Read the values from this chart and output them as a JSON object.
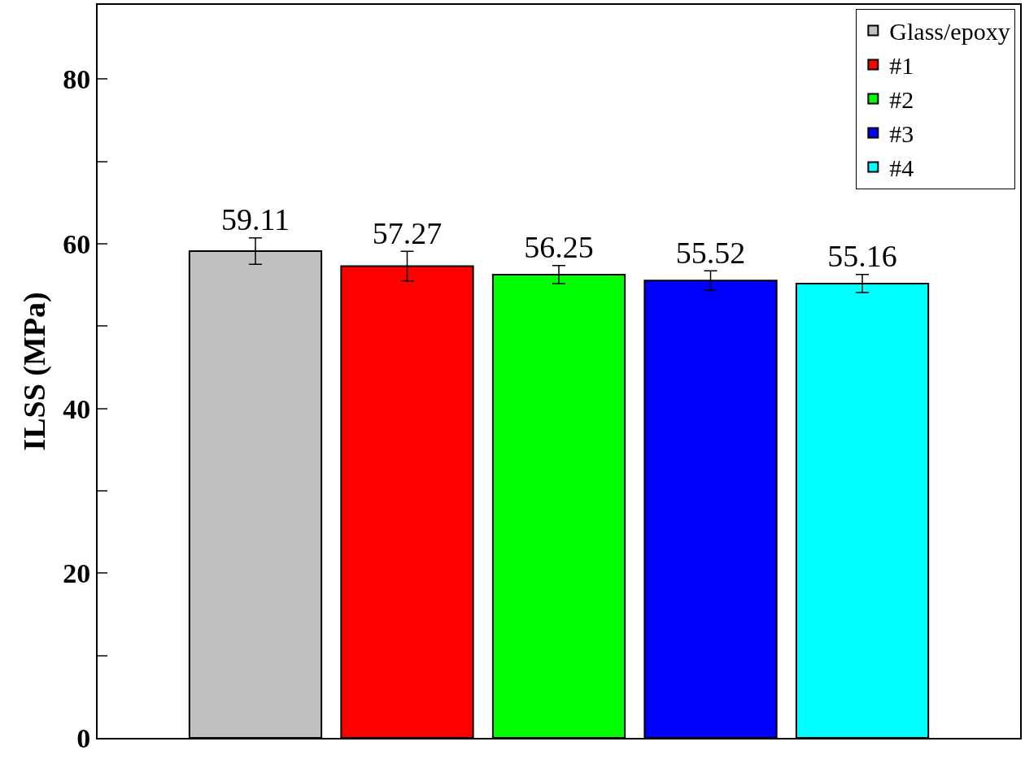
{
  "chart_data": {
    "type": "bar",
    "ylabel": "ILSS (MPa)",
    "categories": [
      null,
      null,
      null,
      null,
      null
    ],
    "series": [
      {
        "name": "Glass/epoxy",
        "color": "#c0c0c0",
        "values": [
          59.11,
          null,
          null,
          null,
          null
        ],
        "errors": [
          1.6,
          null,
          null,
          null,
          null
        ]
      },
      {
        "name": "#1",
        "color": "#ff0000",
        "values": [
          null,
          57.27,
          null,
          null,
          null
        ],
        "errors": [
          null,
          1.8,
          null,
          null,
          null
        ]
      },
      {
        "name": "#2",
        "color": "#00ff00",
        "values": [
          null,
          null,
          56.25,
          null,
          null
        ],
        "errors": [
          null,
          null,
          1.1,
          null,
          null
        ]
      },
      {
        "name": "#3",
        "color": "#0000ff",
        "values": [
          null,
          null,
          null,
          55.52,
          null
        ],
        "errors": [
          null,
          null,
          null,
          1.2,
          null
        ]
      },
      {
        "name": "#4",
        "color": "#00ffff",
        "values": [
          null,
          null,
          null,
          null,
          55.16
        ],
        "errors": [
          null,
          null,
          null,
          null,
          1.1
        ]
      }
    ],
    "ylim": [
      0,
      89
    ],
    "yticks": [
      0,
      {
        "value": 10,
        "label": null
      },
      20,
      {
        "value": 30,
        "label": null
      },
      40,
      {
        "value": 50,
        "label": null
      },
      60,
      {
        "value": 70,
        "label": null
      },
      80
    ],
    "data_labels": true,
    "legend": "top right",
    "tick_labels": "y"
  }
}
